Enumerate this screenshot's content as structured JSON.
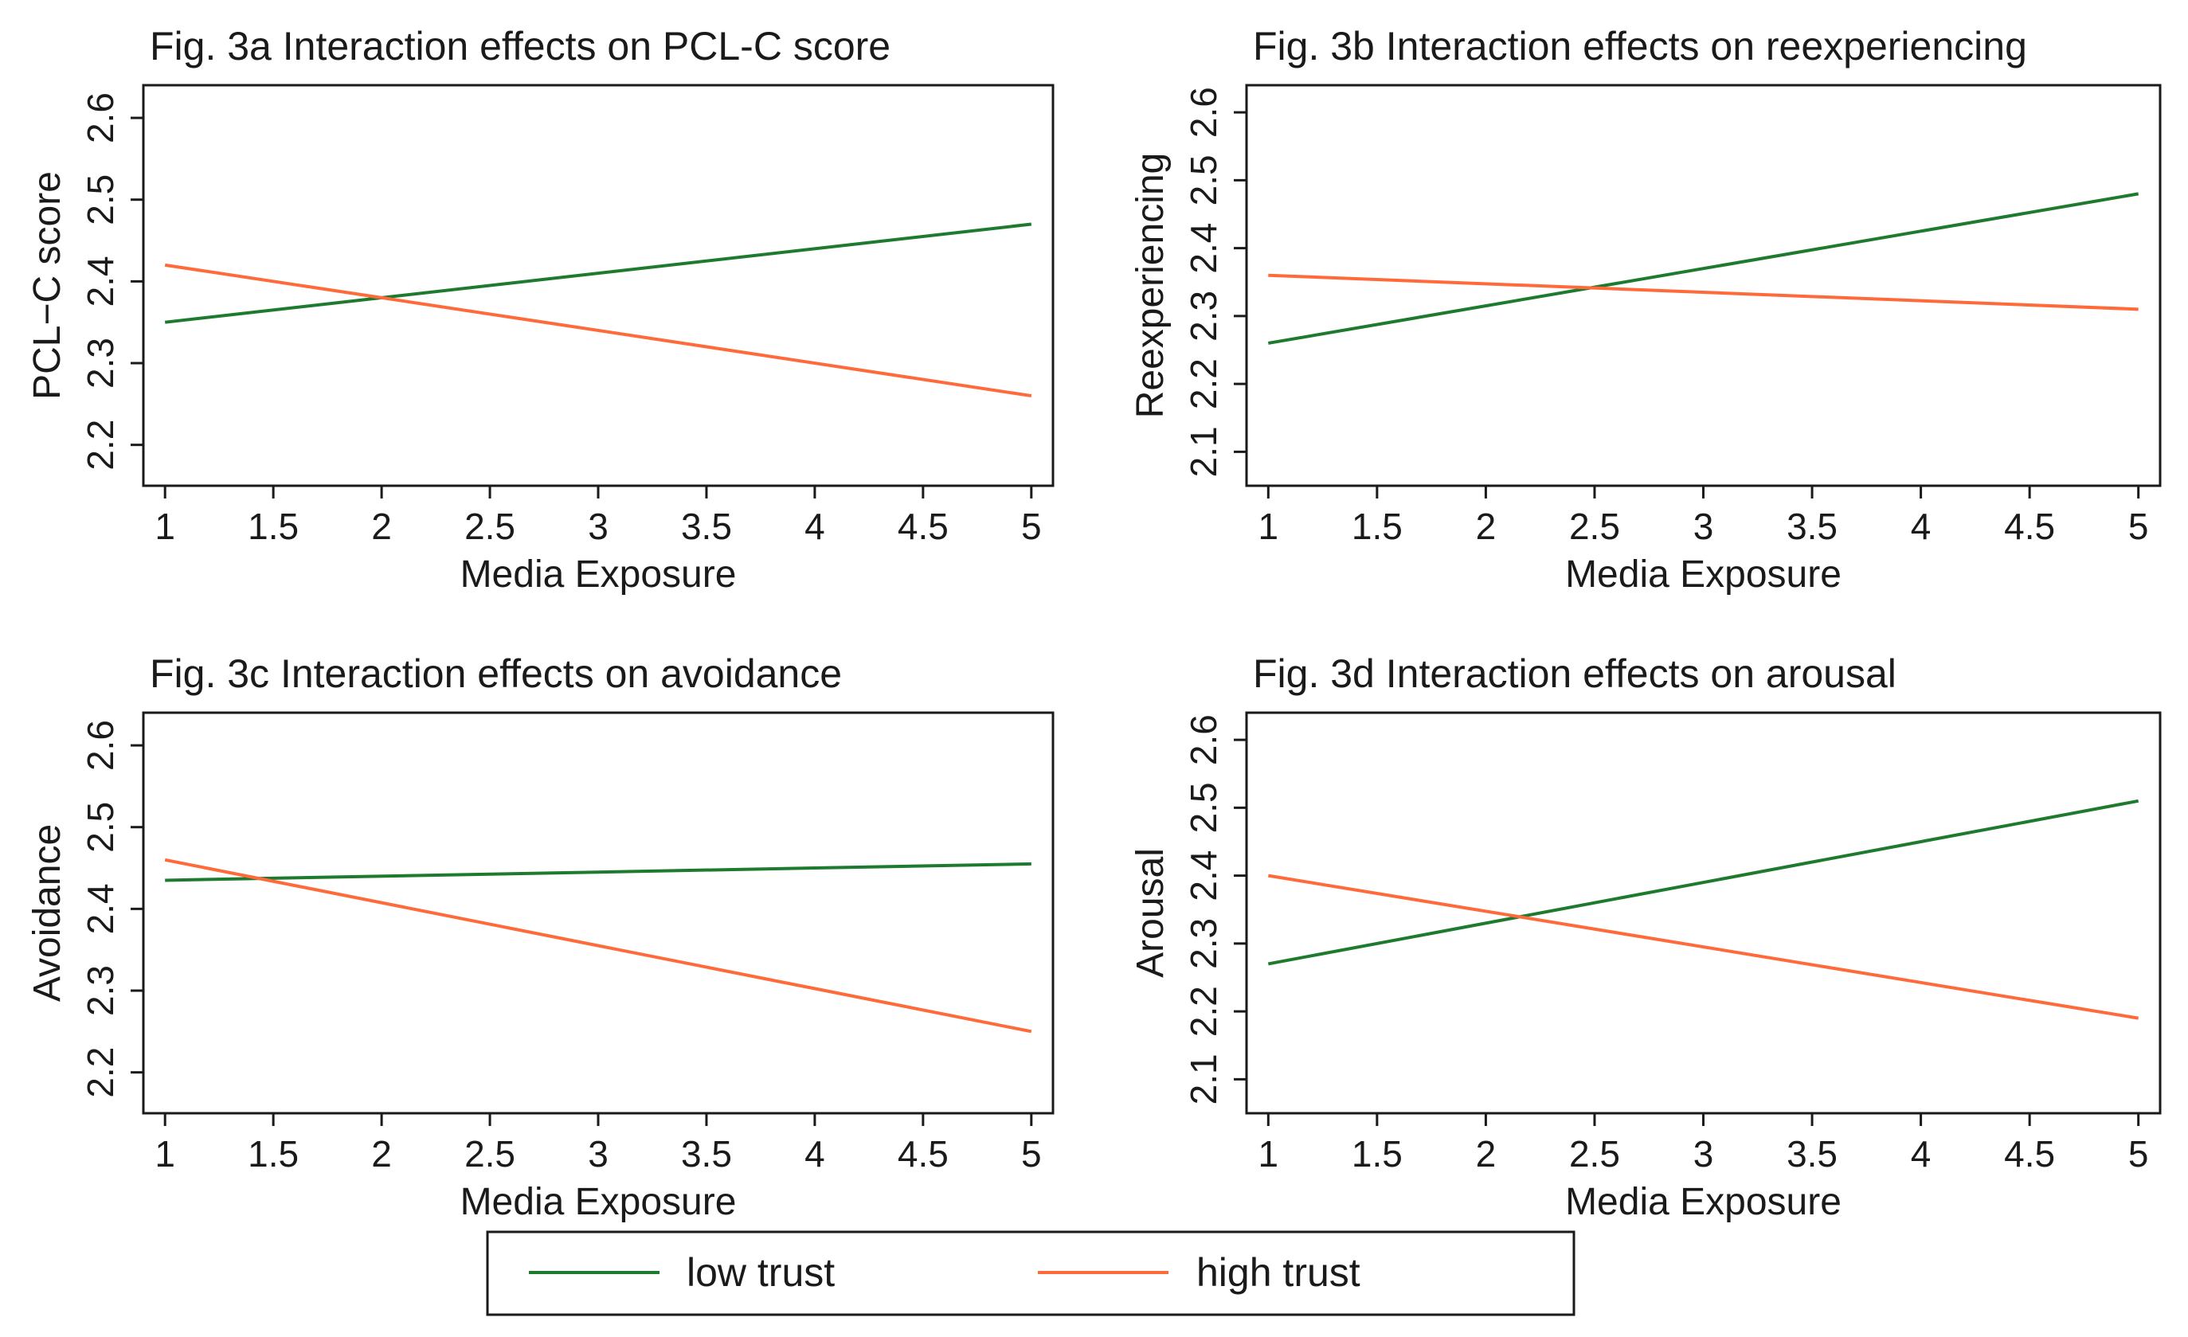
{
  "colors": {
    "low_trust": "#1e7a2e",
    "high_trust": "#ff6a3a",
    "axis": "#1a1a1a",
    "background": "#ffffff"
  },
  "legend": {
    "items": [
      {
        "key": "low_trust",
        "label": "low trust"
      },
      {
        "key": "high_trust",
        "label": "high trust"
      }
    ]
  },
  "chart_data": [
    {
      "type": "line",
      "title": "Fig. 3a Interaction effects on PCL-C score",
      "xlabel": "Media Exposure",
      "ylabel": "PCL−C score",
      "xlim": [
        0.9,
        5.1
      ],
      "ylim": [
        2.15,
        2.64
      ],
      "xticks": [
        1,
        1.5,
        2,
        2.5,
        3,
        3.5,
        4,
        4.5,
        5
      ],
      "xtick_labels": [
        "1",
        "1.5",
        "2",
        "2.5",
        "3",
        "3.5",
        "4",
        "4.5",
        "5"
      ],
      "yticks": [
        2.2,
        2.3,
        2.4,
        2.5,
        2.6
      ],
      "ytick_labels": [
        "2.2",
        "2.3",
        "2.4",
        "2.5",
        "2.6"
      ],
      "series": [
        {
          "name": "low trust",
          "x": [
            1,
            5
          ],
          "y": [
            2.35,
            2.47
          ]
        },
        {
          "name": "high trust",
          "x": [
            1,
            5
          ],
          "y": [
            2.42,
            2.26
          ]
        }
      ]
    },
    {
      "type": "line",
      "title": "Fig. 3b Interaction effects on reexperiencing",
      "xlabel": "Media Exposure",
      "ylabel": "Reexperiencing",
      "xlim": [
        0.9,
        5.1
      ],
      "ylim": [
        2.05,
        2.64
      ],
      "xticks": [
        1,
        1.5,
        2,
        2.5,
        3,
        3.5,
        4,
        4.5,
        5
      ],
      "xtick_labels": [
        "1",
        "1.5",
        "2",
        "2.5",
        "3",
        "3.5",
        "4",
        "4.5",
        "5"
      ],
      "yticks": [
        2.1,
        2.2,
        2.3,
        2.4,
        2.5,
        2.6
      ],
      "ytick_labels": [
        "2.1",
        "2.2",
        "2.3",
        "2.4",
        "2.5",
        "2.6"
      ],
      "series": [
        {
          "name": "low trust",
          "x": [
            1,
            5
          ],
          "y": [
            2.26,
            2.48
          ]
        },
        {
          "name": "high trust",
          "x": [
            1,
            5
          ],
          "y": [
            2.36,
            2.31
          ]
        }
      ]
    },
    {
      "type": "line",
      "title": "Fig. 3c Interaction effects on avoidance",
      "xlabel": "Media Exposure",
      "ylabel": "Avoidance",
      "xlim": [
        0.9,
        5.1
      ],
      "ylim": [
        2.15,
        2.64
      ],
      "xticks": [
        1,
        1.5,
        2,
        2.5,
        3,
        3.5,
        4,
        4.5,
        5
      ],
      "xtick_labels": [
        "1",
        "1.5",
        "2",
        "2.5",
        "3",
        "3.5",
        "4",
        "4.5",
        "5"
      ],
      "yticks": [
        2.2,
        2.3,
        2.4,
        2.5,
        2.6
      ],
      "ytick_labels": [
        "2.2",
        "2.3",
        "2.4",
        "2.5",
        "2.6"
      ],
      "series": [
        {
          "name": "low trust",
          "x": [
            1,
            5
          ],
          "y": [
            2.435,
            2.455
          ]
        },
        {
          "name": "high trust",
          "x": [
            1,
            5
          ],
          "y": [
            2.46,
            2.25
          ]
        }
      ]
    },
    {
      "type": "line",
      "title": "Fig. 3d Interaction effects on arousal",
      "xlabel": "Media Exposure",
      "ylabel": "Arousal",
      "xlim": [
        0.9,
        5.1
      ],
      "ylim": [
        2.05,
        2.64
      ],
      "xticks": [
        1,
        1.5,
        2,
        2.5,
        3,
        3.5,
        4,
        4.5,
        5
      ],
      "xtick_labels": [
        "1",
        "1.5",
        "2",
        "2.5",
        "3",
        "3.5",
        "4",
        "4.5",
        "5"
      ],
      "yticks": [
        2.1,
        2.2,
        2.3,
        2.4,
        2.5,
        2.6
      ],
      "ytick_labels": [
        "2.1",
        "2.2",
        "2.3",
        "2.4",
        "2.5",
        "2.6"
      ],
      "series": [
        {
          "name": "low trust",
          "x": [
            1,
            5
          ],
          "y": [
            2.27,
            2.51
          ]
        },
        {
          "name": "high trust",
          "x": [
            1,
            5
          ],
          "y": [
            2.4,
            2.19
          ]
        }
      ]
    }
  ]
}
